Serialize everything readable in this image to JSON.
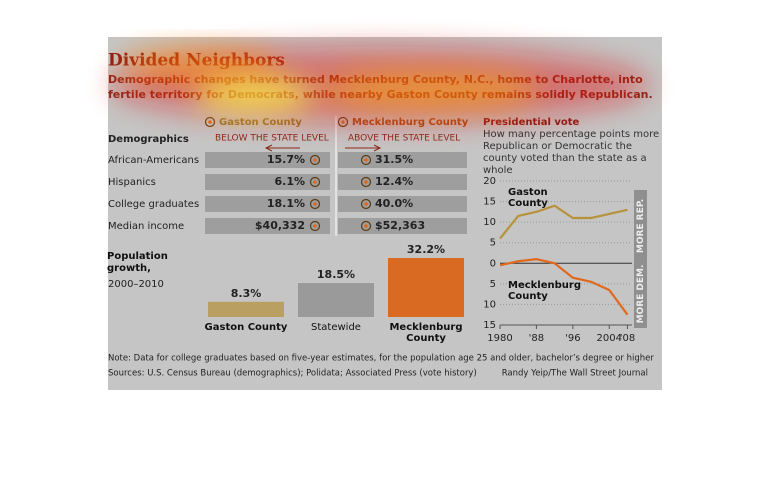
{
  "title": "Divided Neighbors",
  "subtitle": "Demographic changes have turned Mecklenburg County, N.C., home to Charlotte, into fertile territory for Democrats, while nearby Gaston County remains solidly Republican.",
  "demographics": {
    "title": "Demographics",
    "columns": [
      {
        "name": "Gaston County",
        "note": "BELOW THE STATE LEVEL"
      },
      {
        "name": "Mecklenburg County",
        "note": "ABOVE THE STATE LEVEL"
      }
    ],
    "rows": [
      {
        "label": "African-Americans",
        "values": [
          "15.7%",
          "31.5%"
        ]
      },
      {
        "label": "Hispanics",
        "values": [
          "6.1%",
          "12.4%"
        ]
      },
      {
        "label": "College graduates",
        "values": [
          "18.1%",
          "40.0%"
        ]
      },
      {
        "label": "Median income",
        "values": [
          "$40,332",
          "$52,363"
        ]
      }
    ]
  },
  "chart_data": [
    {
      "type": "bar",
      "title": "Population growth,",
      "subtitle": "2000–2010",
      "categories": [
        "Gaston County",
        "Statewide",
        "Mecklenburg County"
      ],
      "values": [
        8.3,
        18.5,
        32.2
      ],
      "value_labels": [
        "8.3%",
        "18.5%",
        "32.2%"
      ],
      "colors": [
        "#b9a062",
        "#9a9a9a",
        "#d96a22"
      ]
    },
    {
      "type": "line",
      "title": "Presidential vote",
      "subtitle": "How many percentage points more Republican or Democratic the county voted than the state as a whole",
      "x": [
        1980,
        1984,
        1988,
        1992,
        1996,
        2000,
        2004,
        2008
      ],
      "series": [
        {
          "name": "Gaston County",
          "color": "#b8923a",
          "values": [
            6,
            11.5,
            12.5,
            14,
            11,
            11,
            12,
            13
          ]
        },
        {
          "name": "Mecklenburg County",
          "color": "#e0691e",
          "values": [
            -0.5,
            0.5,
            1,
            0,
            -3.5,
            -4.5,
            -6.5,
            -12.5
          ]
        }
      ],
      "xlim": [
        1980,
        2009
      ],
      "xticks": [
        1980,
        {
          "value": 1988,
          "label": "'88"
        },
        {
          "value": 1996,
          "label": "'96"
        },
        2004,
        {
          "value": 2008,
          "label": "'08"
        }
      ],
      "ylim": [
        -15,
        20
      ],
      "yticks": [
        20,
        15,
        10,
        5,
        0,
        {
          "value": -5,
          "label": "5"
        },
        {
          "value": -10,
          "label": "10"
        },
        {
          "value": -15,
          "label": "15"
        }
      ],
      "upper_label": "MORE REP.",
      "lower_label": "MORE DEM."
    }
  ],
  "note": "Note: Data for college graduates based on five-year estimates, for the population age 25 and older, bachelor’s degree or higher",
  "sources": "Sources: U.S. Census Bureau (demographics); Polidata; Associated Press (vote history)",
  "credit": "Randy Yeip/The Wall Street Journal"
}
